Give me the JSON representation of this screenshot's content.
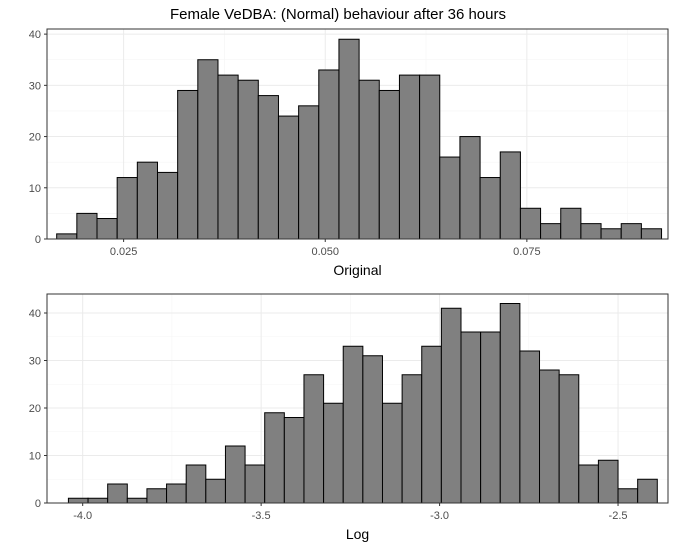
{
  "title": "Female VeDBA: (Normal) behaviour after 36 hours",
  "chart_data": [
    {
      "type": "bar",
      "xlabel": "Original",
      "ylabel": "",
      "xlim": [
        0.0155,
        0.0925
      ],
      "ylim": [
        0,
        41
      ],
      "xticks": [
        0.025,
        0.05,
        0.075
      ],
      "xtick_labels": [
        "0.025",
        "0.050",
        "0.075"
      ],
      "yticks": [
        0,
        10,
        20,
        30,
        40
      ],
      "ytick_labels": [
        "0",
        "10",
        "20",
        "30",
        "40"
      ],
      "bin_start": 0.0167,
      "bin_width": 0.0025,
      "values": [
        1,
        5,
        4,
        12,
        15,
        13,
        29,
        35,
        32,
        31,
        28,
        24,
        26,
        33,
        39,
        31,
        29,
        32,
        32,
        16,
        20,
        12,
        17,
        6,
        3,
        6,
        3,
        2,
        3,
        2
      ],
      "grid": true
    },
    {
      "type": "bar",
      "xlabel": "Log",
      "ylabel": "",
      "xlim": [
        -4.1,
        -2.36
      ],
      "ylim": [
        0,
        44
      ],
      "xticks": [
        -4.0,
        -3.5,
        -3.0,
        -2.5
      ],
      "xtick_labels": [
        "-4.0",
        "-3.5",
        "-3.0",
        "-2.5"
      ],
      "yticks": [
        0,
        10,
        20,
        30,
        40
      ],
      "ytick_labels": [
        "0",
        "10",
        "20",
        "30",
        "40"
      ],
      "bin_start": -4.04,
      "bin_width": 0.055,
      "values": [
        1,
        1,
        4,
        1,
        3,
        4,
        8,
        5,
        12,
        8,
        19,
        18,
        27,
        21,
        33,
        31,
        21,
        27,
        33,
        41,
        36,
        36,
        42,
        32,
        28,
        27,
        8,
        9,
        3,
        5
      ],
      "grid": true
    }
  ]
}
